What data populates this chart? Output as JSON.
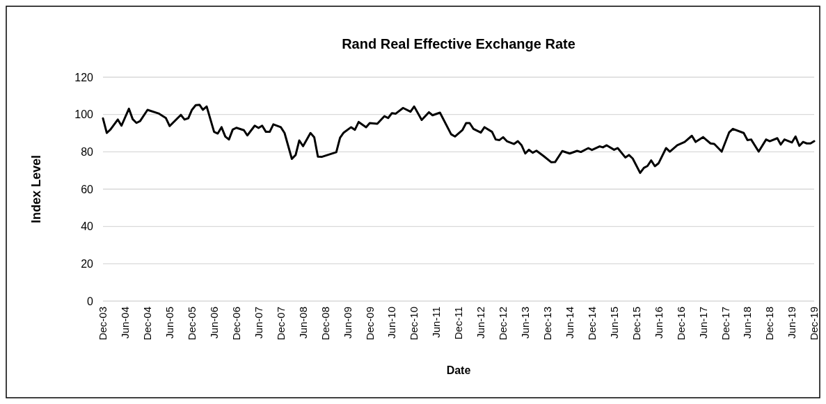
{
  "chart_data": {
    "type": "line",
    "title": "Rand Real Effective Exchange Rate",
    "xlabel": "Date",
    "ylabel": "Index Level",
    "x": [
      "2003-12",
      "2004-01",
      "2004-02",
      "2004-04",
      "2004-05",
      "2004-07",
      "2004-08",
      "2004-09",
      "2004-10",
      "2004-12",
      "2005-03",
      "2005-05",
      "2005-06",
      "2005-09",
      "2005-10",
      "2005-11",
      "2005-12",
      "2006-01",
      "2006-02",
      "2006-03",
      "2006-04",
      "2006-06",
      "2006-07",
      "2006-08",
      "2006-09",
      "2006-10",
      "2006-11",
      "2006-12",
      "2007-02",
      "2007-03",
      "2007-05",
      "2007-06",
      "2007-07",
      "2007-08",
      "2007-09",
      "2007-10",
      "2007-12",
      "2008-01",
      "2008-03",
      "2008-04",
      "2008-05",
      "2008-06",
      "2008-08",
      "2008-09",
      "2008-10",
      "2008-11",
      "2009-03",
      "2009-04",
      "2009-05",
      "2009-07",
      "2009-08",
      "2009-09",
      "2009-11",
      "2009-12",
      "2010-02",
      "2010-04",
      "2010-05",
      "2010-06",
      "2010-07",
      "2010-09",
      "2010-11",
      "2010-12",
      "2011-02",
      "2011-04",
      "2011-05",
      "2011-07",
      "2011-10",
      "2011-11",
      "2012-01",
      "2012-02",
      "2012-03",
      "2012-04",
      "2012-06",
      "2012-07",
      "2012-09",
      "2012-10",
      "2012-11",
      "2012-12",
      "2013-01",
      "2013-03",
      "2013-04",
      "2013-05",
      "2013-06",
      "2013-07",
      "2013-08",
      "2013-09",
      "2013-11",
      "2014-01",
      "2014-02",
      "2014-04",
      "2014-06",
      "2014-08",
      "2014-09",
      "2014-11",
      "2014-12",
      "2015-02",
      "2015-03",
      "2015-04",
      "2015-06",
      "2015-07",
      "2015-09",
      "2015-10",
      "2015-11",
      "2016-01",
      "2016-02",
      "2016-03",
      "2016-04",
      "2016-05",
      "2016-06",
      "2016-08",
      "2016-09",
      "2016-11",
      "2017-01",
      "2017-03",
      "2017-04",
      "2017-06",
      "2017-08",
      "2017-09",
      "2017-11",
      "2018-01",
      "2018-02",
      "2018-05",
      "2018-06",
      "2018-07",
      "2018-09",
      "2018-11",
      "2018-12",
      "2019-02",
      "2019-03",
      "2019-04",
      "2019-06",
      "2019-07",
      "2019-08",
      "2019-09",
      "2019-10",
      "2019-11",
      "2019-12"
    ],
    "series": [
      {
        "color": "#000000",
        "values": [
          97.9,
          90.1,
          92,
          97.3,
          94,
          103.1,
          97.5,
          95.5,
          96.5,
          102.5,
          100.6,
          98.1,
          93.8,
          99.8,
          97.3,
          98,
          102.5,
          105,
          105.2,
          102.5,
          104.3,
          90.7,
          89.8,
          93.2,
          88.2,
          86.6,
          91.9,
          92.9,
          91.6,
          88.8,
          94,
          92.8,
          94,
          90.7,
          90.7,
          94.7,
          93.2,
          90.1,
          76.2,
          78.3,
          86.1,
          83,
          90.1,
          87.8,
          77.4,
          77.3,
          79.8,
          87.5,
          90.3,
          93.2,
          91.8,
          96,
          93.2,
          95.4,
          95,
          99.1,
          98.1,
          100.7,
          100.4,
          103.5,
          101.5,
          104.3,
          97.1,
          101.2,
          99.6,
          101,
          89.4,
          88.2,
          91.6,
          95.4,
          95.4,
          92.3,
          90.3,
          93.2,
          90.7,
          86.6,
          86.3,
          87.8,
          85.7,
          84.2,
          85.7,
          83.6,
          79.1,
          81.1,
          79.5,
          80.6,
          77.6,
          74.4,
          74.5,
          80.4,
          79.1,
          80.5,
          79.9,
          82,
          81,
          82.9,
          82.4,
          83.5,
          81.1,
          82,
          77,
          78.3,
          76.4,
          68.7,
          71.4,
          72.4,
          75.4,
          72.3,
          73.9,
          82,
          80.1,
          83.5,
          85.3,
          88.6,
          85.3,
          87.9,
          84.5,
          84.2,
          80.1,
          90.4,
          92.3,
          90.1,
          86.3,
          86.6,
          80.1,
          86.6,
          85.7,
          87.3,
          83.9,
          86.6,
          85,
          88.2,
          83.2,
          85.3,
          84.5,
          84.5,
          85.7
        ]
      }
    ],
    "xlim": [
      "2003-12",
      "2019-12"
    ],
    "xticks": [
      {
        "value": "2003-12",
        "label": "Dec-03"
      },
      {
        "value": "2004-06",
        "label": "Jun-04"
      },
      {
        "value": "2004-12",
        "label": "Dec-04"
      },
      {
        "value": "2005-06",
        "label": "Jun-05"
      },
      {
        "value": "2005-12",
        "label": "Dec-05"
      },
      {
        "value": "2006-06",
        "label": "Jun-06"
      },
      {
        "value": "2006-12",
        "label": "Dec-06"
      },
      {
        "value": "2007-06",
        "label": "Jun-07"
      },
      {
        "value": "2007-12",
        "label": "Dec-07"
      },
      {
        "value": "2008-06",
        "label": "Jun-08"
      },
      {
        "value": "2008-12",
        "label": "Dec-08"
      },
      {
        "value": "2009-06",
        "label": "Jun-09"
      },
      {
        "value": "2009-12",
        "label": "Dec-09"
      },
      {
        "value": "2010-06",
        "label": "Jun-10"
      },
      {
        "value": "2010-12",
        "label": "Dec-10"
      },
      {
        "value": "2011-06",
        "label": "Jun-11"
      },
      {
        "value": "2011-12",
        "label": "Dec-11"
      },
      {
        "value": "2012-06",
        "label": "Jun-12"
      },
      {
        "value": "2012-12",
        "label": "Dec-12"
      },
      {
        "value": "2013-06",
        "label": "Jun-13"
      },
      {
        "value": "2013-12",
        "label": "Dec-13"
      },
      {
        "value": "2014-06",
        "label": "Jun-14"
      },
      {
        "value": "2014-12",
        "label": "Dec-14"
      },
      {
        "value": "2015-06",
        "label": "Jun-15"
      },
      {
        "value": "2015-12",
        "label": "Dec-15"
      },
      {
        "value": "2016-06",
        "label": "Jun-16"
      },
      {
        "value": "2016-12",
        "label": "Dec-16"
      },
      {
        "value": "2017-06",
        "label": "Jun-17"
      },
      {
        "value": "2017-12",
        "label": "Dec-17"
      },
      {
        "value": "2018-06",
        "label": "Jun-18"
      },
      {
        "value": "2018-12",
        "label": "Dec-18"
      },
      {
        "value": "2019-06",
        "label": "Jun-19"
      },
      {
        "value": "2019-12",
        "label": "Dec-19"
      }
    ],
    "ylim": [
      0,
      120
    ],
    "yticks": [
      0,
      20,
      40,
      60,
      80,
      100,
      120
    ],
    "grid": "y"
  }
}
